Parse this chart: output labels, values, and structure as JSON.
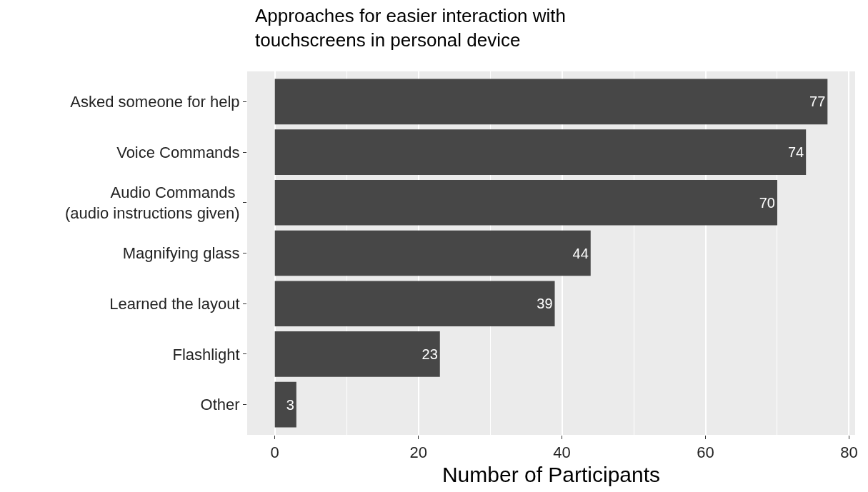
{
  "chart_data": {
    "type": "bar",
    "orientation": "horizontal",
    "title": "Approaches for easier interaction with\ntouchscreens in personal device",
    "xlabel": "Number of Participants",
    "categories": [
      "Asked someone for help",
      "Voice Commands",
      "Audio Commands \n(audio instructions given)",
      "Magnifying glass",
      "Learned the layout",
      "Flashlight",
      "Other"
    ],
    "values": [
      77,
      74,
      70,
      44,
      39,
      23,
      3
    ],
    "color": "#474747",
    "xlim": [
      -3.85,
      80.85
    ],
    "xticks": [
      0,
      20,
      40,
      60,
      80
    ],
    "grid": "x",
    "data_labels": true
  }
}
